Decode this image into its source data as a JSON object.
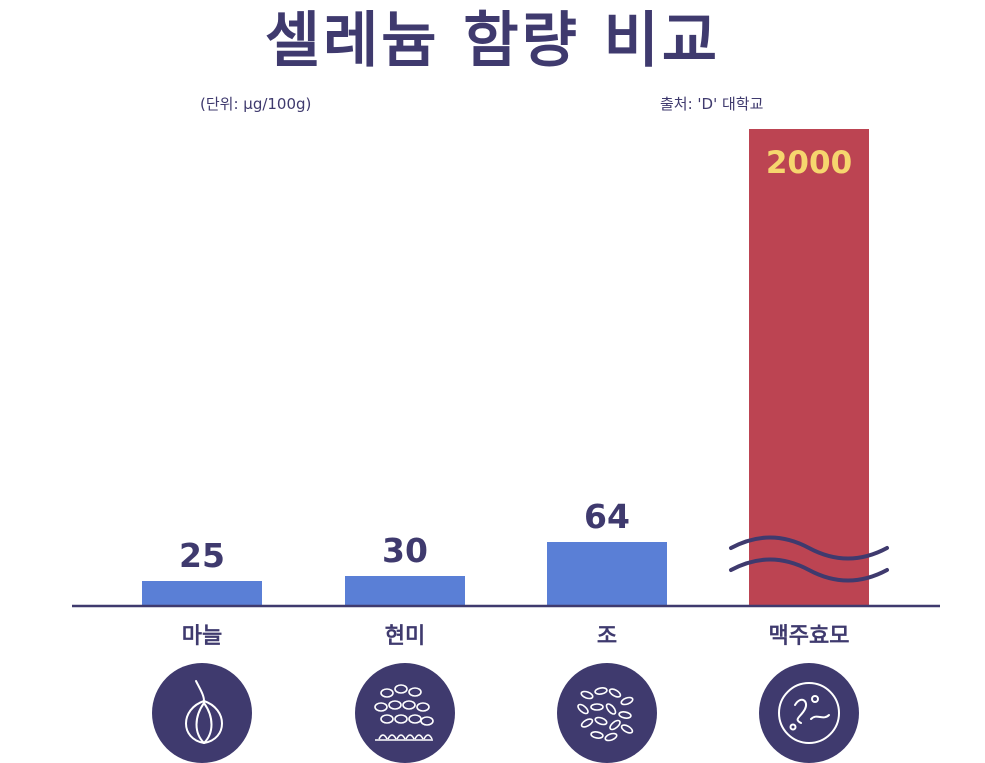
{
  "header": {
    "title": "셀레늄 함량 비교",
    "unit": "(단위: μg/100g)",
    "source": "출처: 'D' 대학교"
  },
  "icons": [
    "garlic-icon",
    "brown-rice-icon",
    "millet-icon",
    "brewers-yeast-icon"
  ],
  "colors": {
    "normal_bar": "#5a7fd6",
    "highlight_bar": "#bc4452",
    "highlight_label": "#f6d66e",
    "text": "#3f3a6e",
    "axis": "#3f3a6e",
    "icon_bg": "#3f3a6e"
  },
  "chart_data": {
    "type": "bar",
    "categories": [
      "마늘",
      "현미",
      "조",
      "맥주효모"
    ],
    "values": [
      25,
      30,
      64,
      2000
    ],
    "value_labels": [
      "25",
      "30",
      "64",
      "2000"
    ],
    "highlight_index": 3,
    "axis_break": true
  }
}
